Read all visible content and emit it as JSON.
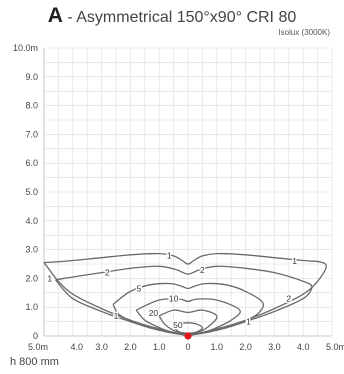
{
  "header": {
    "letter": "A",
    "title_rest": " - Asymmetrical 150°x90° CRI 80",
    "subtitle": "Isolux (3000K)"
  },
  "footer": {
    "mounting_height": "h 800 mm"
  },
  "chart_data": {
    "type": "line",
    "title": "A - Asymmetrical 150°x90° CRI 80",
    "subtitle": "Isolux (3000K)",
    "xlim": [
      -5,
      5
    ],
    "ylim": [
      0,
      10
    ],
    "x_ticks": [
      {
        "v": -5,
        "label": "5.0m"
      },
      {
        "v": -4,
        "label": "4.0"
      },
      {
        "v": -3,
        "label": "3.0"
      },
      {
        "v": -2,
        "label": "2.0"
      },
      {
        "v": -1,
        "label": "1.0"
      },
      {
        "v": 0,
        "label": "0"
      },
      {
        "v": 1,
        "label": "1.0"
      },
      {
        "v": 2,
        "label": "2.0"
      },
      {
        "v": 3,
        "label": "3.0"
      },
      {
        "v": 4,
        "label": "4.0"
      },
      {
        "v": 5,
        "label": "5.0m"
      }
    ],
    "y_ticks": [
      {
        "v": 0,
        "label": "0"
      },
      {
        "v": 1,
        "label": "1.0"
      },
      {
        "v": 2,
        "label": "2.0"
      },
      {
        "v": 3,
        "label": "3.0"
      },
      {
        "v": 4,
        "label": "4.0"
      },
      {
        "v": 5,
        "label": "5.0"
      },
      {
        "v": 6,
        "label": "6.0"
      },
      {
        "v": 7,
        "label": "7.0"
      },
      {
        "v": 8,
        "label": "8.0"
      },
      {
        "v": 9,
        "label": "9.0"
      },
      {
        "v": 10,
        "label": "10.0m"
      }
    ],
    "grid": true,
    "light_source": [
      0,
      0
    ],
    "contours": [
      {
        "name": "1",
        "labels": [
          [
            -0.65,
            2.8
          ],
          [
            3.7,
            2.6
          ],
          [
            -4.8,
            2.0
          ],
          [
            -2.5,
            0.7
          ],
          [
            2.1,
            0.5
          ]
        ],
        "points": [
          [
            -5.0,
            2.55
          ],
          [
            -4.5,
            2.58
          ],
          [
            -4.0,
            2.62
          ],
          [
            -3.0,
            2.72
          ],
          [
            -2.0,
            2.82
          ],
          [
            -1.0,
            2.86
          ],
          [
            -0.5,
            2.78
          ],
          [
            -0.2,
            2.62
          ],
          [
            0.0,
            2.5
          ],
          [
            0.2,
            2.62
          ],
          [
            0.5,
            2.78
          ],
          [
            1.0,
            2.86
          ],
          [
            2.0,
            2.82
          ],
          [
            3.0,
            2.72
          ],
          [
            4.0,
            2.62
          ],
          [
            4.6,
            2.57
          ],
          [
            4.8,
            2.4
          ],
          [
            4.5,
            1.9
          ],
          [
            4.0,
            1.45
          ],
          [
            3.0,
            0.95
          ],
          [
            2.0,
            0.55
          ],
          [
            1.2,
            0.3
          ],
          [
            0.6,
            0.15
          ],
          [
            0.2,
            0.05
          ],
          [
            0.0,
            0.02
          ],
          [
            -0.2,
            0.05
          ],
          [
            -0.6,
            0.15
          ],
          [
            -1.2,
            0.3
          ],
          [
            -2.0,
            0.55
          ],
          [
            -3.0,
            0.95
          ],
          [
            -4.0,
            1.45
          ],
          [
            -4.5,
            1.9
          ],
          [
            -4.85,
            2.35
          ],
          [
            -5.0,
            2.55
          ]
        ]
      },
      {
        "name": "2",
        "labels": [
          [
            -2.8,
            2.2
          ],
          [
            0.5,
            2.3
          ],
          [
            3.5,
            1.3
          ]
        ],
        "points": [
          [
            -4.6,
            1.95
          ],
          [
            -4.0,
            2.05
          ],
          [
            -3.0,
            2.2
          ],
          [
            -2.0,
            2.35
          ],
          [
            -1.0,
            2.42
          ],
          [
            -0.4,
            2.3
          ],
          [
            0.0,
            2.15
          ],
          [
            0.4,
            2.3
          ],
          [
            1.0,
            2.42
          ],
          [
            2.0,
            2.35
          ],
          [
            3.0,
            2.2
          ],
          [
            4.0,
            1.9
          ],
          [
            4.3,
            1.7
          ],
          [
            4.0,
            1.3
          ],
          [
            3.0,
            0.85
          ],
          [
            2.0,
            0.5
          ],
          [
            1.2,
            0.25
          ],
          [
            0.6,
            0.12
          ],
          [
            0.2,
            0.05
          ],
          [
            0.0,
            0.04
          ],
          [
            -0.2,
            0.05
          ],
          [
            -0.6,
            0.12
          ],
          [
            -1.2,
            0.25
          ],
          [
            -2.0,
            0.5
          ],
          [
            -3.0,
            0.85
          ],
          [
            -4.0,
            1.3
          ],
          [
            -4.6,
            1.95
          ]
        ]
      },
      {
        "name": "5",
        "labels": [
          [
            -1.7,
            1.65
          ]
        ],
        "points": [
          [
            -2.6,
            1.1
          ],
          [
            -2.0,
            1.55
          ],
          [
            -1.3,
            1.78
          ],
          [
            -0.6,
            1.82
          ],
          [
            -0.2,
            1.72
          ],
          [
            0.0,
            1.65
          ],
          [
            0.2,
            1.72
          ],
          [
            0.6,
            1.82
          ],
          [
            1.3,
            1.78
          ],
          [
            2.0,
            1.55
          ],
          [
            2.6,
            1.15
          ],
          [
            2.4,
            0.75
          ],
          [
            1.8,
            0.45
          ],
          [
            1.0,
            0.2
          ],
          [
            0.4,
            0.08
          ],
          [
            0.0,
            0.05
          ],
          [
            -0.4,
            0.08
          ],
          [
            -1.0,
            0.2
          ],
          [
            -1.8,
            0.45
          ],
          [
            -2.4,
            0.75
          ],
          [
            -2.6,
            1.1
          ]
        ]
      },
      {
        "name": "10",
        "labels": [
          [
            -0.5,
            1.3
          ]
        ],
        "points": [
          [
            -1.8,
            0.9
          ],
          [
            -1.0,
            1.25
          ],
          [
            -0.3,
            1.28
          ],
          [
            0.0,
            1.2
          ],
          [
            0.3,
            1.28
          ],
          [
            1.0,
            1.25
          ],
          [
            1.8,
            0.9
          ],
          [
            1.5,
            0.55
          ],
          [
            0.9,
            0.25
          ],
          [
            0.4,
            0.1
          ],
          [
            0.0,
            0.06
          ],
          [
            -0.4,
            0.1
          ],
          [
            -0.9,
            0.25
          ],
          [
            -1.5,
            0.55
          ],
          [
            -1.8,
            0.9
          ]
        ]
      },
      {
        "name": "20",
        "labels": [
          [
            -1.2,
            0.8
          ]
        ],
        "points": [
          [
            -1.0,
            0.7
          ],
          [
            -0.5,
            0.9
          ],
          [
            0.0,
            0.82
          ],
          [
            0.5,
            0.9
          ],
          [
            1.0,
            0.7
          ],
          [
            0.8,
            0.4
          ],
          [
            0.4,
            0.15
          ],
          [
            0.0,
            0.08
          ],
          [
            -0.4,
            0.15
          ],
          [
            -0.8,
            0.4
          ],
          [
            -1.0,
            0.7
          ]
        ]
      },
      {
        "name": "50",
        "labels": [
          [
            -0.35,
            0.38
          ]
        ],
        "points": [
          [
            -0.5,
            0.3
          ],
          [
            -0.2,
            0.44
          ],
          [
            0.2,
            0.44
          ],
          [
            0.5,
            0.3
          ],
          [
            0.3,
            0.14
          ],
          [
            0.0,
            0.1
          ],
          [
            -0.3,
            0.14
          ],
          [
            -0.5,
            0.3
          ]
        ]
      }
    ]
  }
}
